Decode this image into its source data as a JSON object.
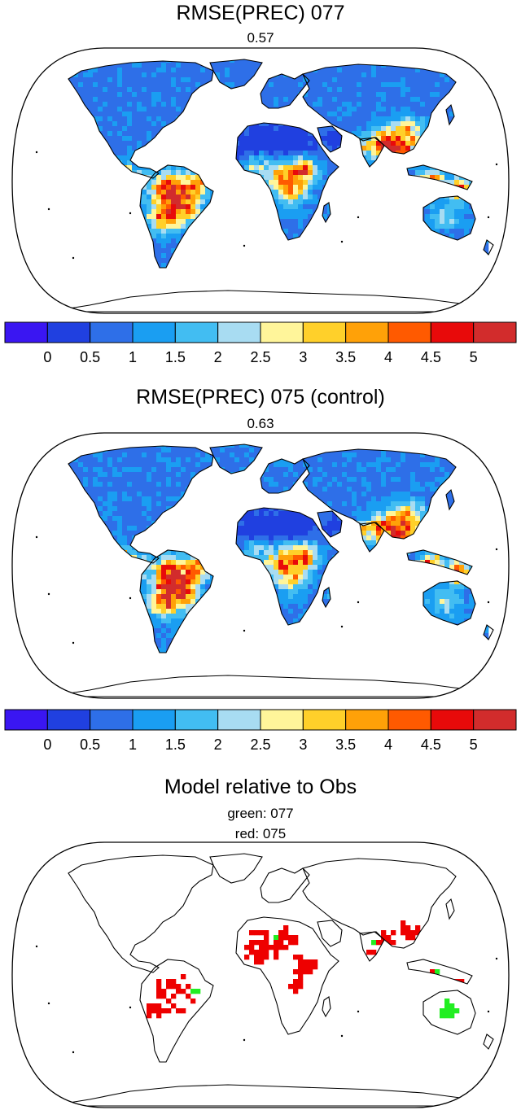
{
  "panels": [
    {
      "title": "RMSE(PREC) 077",
      "subtitle": "0.57",
      "mode": "rmse",
      "variant": 77
    },
    {
      "title": "RMSE(PREC) 075 (control)",
      "subtitle": "0.63",
      "mode": "rmse",
      "variant": 75
    },
    {
      "title": "Model relative to Obs",
      "subtitle_lines": [
        "green: 077",
        "red: 075"
      ],
      "mode": "compare"
    }
  ],
  "colorbar": {
    "labels": [
      "0",
      "0.5",
      "1",
      "1.5",
      "2",
      "2.5",
      "3",
      "3.5",
      "4",
      "4.5",
      "5"
    ],
    "colors": [
      "#3a16f2",
      "#2040e0",
      "#2e6fe8",
      "#1a9ef2",
      "#42bdf2",
      "#a8dcf2",
      "#fff59a",
      "#ffd02a",
      "#ffa108",
      "#ff5a00",
      "#e80a0a",
      "#d22c2c"
    ]
  },
  "compare_colors": {
    "green": "#22ee22",
    "red": "#ee0000"
  }
}
